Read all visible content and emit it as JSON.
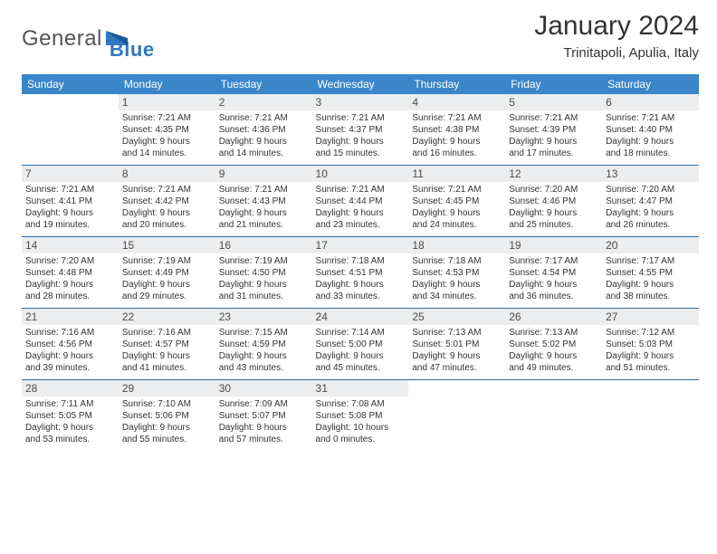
{
  "logo": {
    "word1": "General",
    "word2": "Blue",
    "text1_color": "#555555",
    "text2_color": "#2f78bd"
  },
  "header": {
    "month": "January 2024",
    "location": "Trinitapoli, Apulia, Italy"
  },
  "colors": {
    "header_bg": "#3a86c8",
    "header_fg": "#ffffff",
    "daynum_bg": "#ecedee",
    "row_border": "#2f6ea8"
  },
  "weekdays": [
    "Sunday",
    "Monday",
    "Tuesday",
    "Wednesday",
    "Thursday",
    "Friday",
    "Saturday"
  ],
  "weeks": [
    [
      {
        "n": "",
        "l": [
          "",
          "",
          "",
          ""
        ]
      },
      {
        "n": "1",
        "l": [
          "Sunrise: 7:21 AM",
          "Sunset: 4:35 PM",
          "Daylight: 9 hours",
          "and 14 minutes."
        ]
      },
      {
        "n": "2",
        "l": [
          "Sunrise: 7:21 AM",
          "Sunset: 4:36 PM",
          "Daylight: 9 hours",
          "and 14 minutes."
        ]
      },
      {
        "n": "3",
        "l": [
          "Sunrise: 7:21 AM",
          "Sunset: 4:37 PM",
          "Daylight: 9 hours",
          "and 15 minutes."
        ]
      },
      {
        "n": "4",
        "l": [
          "Sunrise: 7:21 AM",
          "Sunset: 4:38 PM",
          "Daylight: 9 hours",
          "and 16 minutes."
        ]
      },
      {
        "n": "5",
        "l": [
          "Sunrise: 7:21 AM",
          "Sunset: 4:39 PM",
          "Daylight: 9 hours",
          "and 17 minutes."
        ]
      },
      {
        "n": "6",
        "l": [
          "Sunrise: 7:21 AM",
          "Sunset: 4:40 PM",
          "Daylight: 9 hours",
          "and 18 minutes."
        ]
      }
    ],
    [
      {
        "n": "7",
        "l": [
          "Sunrise: 7:21 AM",
          "Sunset: 4:41 PM",
          "Daylight: 9 hours",
          "and 19 minutes."
        ]
      },
      {
        "n": "8",
        "l": [
          "Sunrise: 7:21 AM",
          "Sunset: 4:42 PM",
          "Daylight: 9 hours",
          "and 20 minutes."
        ]
      },
      {
        "n": "9",
        "l": [
          "Sunrise: 7:21 AM",
          "Sunset: 4:43 PM",
          "Daylight: 9 hours",
          "and 21 minutes."
        ]
      },
      {
        "n": "10",
        "l": [
          "Sunrise: 7:21 AM",
          "Sunset: 4:44 PM",
          "Daylight: 9 hours",
          "and 23 minutes."
        ]
      },
      {
        "n": "11",
        "l": [
          "Sunrise: 7:21 AM",
          "Sunset: 4:45 PM",
          "Daylight: 9 hours",
          "and 24 minutes."
        ]
      },
      {
        "n": "12",
        "l": [
          "Sunrise: 7:20 AM",
          "Sunset: 4:46 PM",
          "Daylight: 9 hours",
          "and 25 minutes."
        ]
      },
      {
        "n": "13",
        "l": [
          "Sunrise: 7:20 AM",
          "Sunset: 4:47 PM",
          "Daylight: 9 hours",
          "and 26 minutes."
        ]
      }
    ],
    [
      {
        "n": "14",
        "l": [
          "Sunrise: 7:20 AM",
          "Sunset: 4:48 PM",
          "Daylight: 9 hours",
          "and 28 minutes."
        ]
      },
      {
        "n": "15",
        "l": [
          "Sunrise: 7:19 AM",
          "Sunset: 4:49 PM",
          "Daylight: 9 hours",
          "and 29 minutes."
        ]
      },
      {
        "n": "16",
        "l": [
          "Sunrise: 7:19 AM",
          "Sunset: 4:50 PM",
          "Daylight: 9 hours",
          "and 31 minutes."
        ]
      },
      {
        "n": "17",
        "l": [
          "Sunrise: 7:18 AM",
          "Sunset: 4:51 PM",
          "Daylight: 9 hours",
          "and 33 minutes."
        ]
      },
      {
        "n": "18",
        "l": [
          "Sunrise: 7:18 AM",
          "Sunset: 4:53 PM",
          "Daylight: 9 hours",
          "and 34 minutes."
        ]
      },
      {
        "n": "19",
        "l": [
          "Sunrise: 7:17 AM",
          "Sunset: 4:54 PM",
          "Daylight: 9 hours",
          "and 36 minutes."
        ]
      },
      {
        "n": "20",
        "l": [
          "Sunrise: 7:17 AM",
          "Sunset: 4:55 PM",
          "Daylight: 9 hours",
          "and 38 minutes."
        ]
      }
    ],
    [
      {
        "n": "21",
        "l": [
          "Sunrise: 7:16 AM",
          "Sunset: 4:56 PM",
          "Daylight: 9 hours",
          "and 39 minutes."
        ]
      },
      {
        "n": "22",
        "l": [
          "Sunrise: 7:16 AM",
          "Sunset: 4:57 PM",
          "Daylight: 9 hours",
          "and 41 minutes."
        ]
      },
      {
        "n": "23",
        "l": [
          "Sunrise: 7:15 AM",
          "Sunset: 4:59 PM",
          "Daylight: 9 hours",
          "and 43 minutes."
        ]
      },
      {
        "n": "24",
        "l": [
          "Sunrise: 7:14 AM",
          "Sunset: 5:00 PM",
          "Daylight: 9 hours",
          "and 45 minutes."
        ]
      },
      {
        "n": "25",
        "l": [
          "Sunrise: 7:13 AM",
          "Sunset: 5:01 PM",
          "Daylight: 9 hours",
          "and 47 minutes."
        ]
      },
      {
        "n": "26",
        "l": [
          "Sunrise: 7:13 AM",
          "Sunset: 5:02 PM",
          "Daylight: 9 hours",
          "and 49 minutes."
        ]
      },
      {
        "n": "27",
        "l": [
          "Sunrise: 7:12 AM",
          "Sunset: 5:03 PM",
          "Daylight: 9 hours",
          "and 51 minutes."
        ]
      }
    ],
    [
      {
        "n": "28",
        "l": [
          "Sunrise: 7:11 AM",
          "Sunset: 5:05 PM",
          "Daylight: 9 hours",
          "and 53 minutes."
        ]
      },
      {
        "n": "29",
        "l": [
          "Sunrise: 7:10 AM",
          "Sunset: 5:06 PM",
          "Daylight: 9 hours",
          "and 55 minutes."
        ]
      },
      {
        "n": "30",
        "l": [
          "Sunrise: 7:09 AM",
          "Sunset: 5:07 PM",
          "Daylight: 9 hours",
          "and 57 minutes."
        ]
      },
      {
        "n": "31",
        "l": [
          "Sunrise: 7:08 AM",
          "Sunset: 5:08 PM",
          "Daylight: 10 hours",
          "and 0 minutes."
        ]
      },
      {
        "n": "",
        "l": [
          "",
          "",
          "",
          ""
        ]
      },
      {
        "n": "",
        "l": [
          "",
          "",
          "",
          ""
        ]
      },
      {
        "n": "",
        "l": [
          "",
          "",
          "",
          ""
        ]
      }
    ]
  ]
}
